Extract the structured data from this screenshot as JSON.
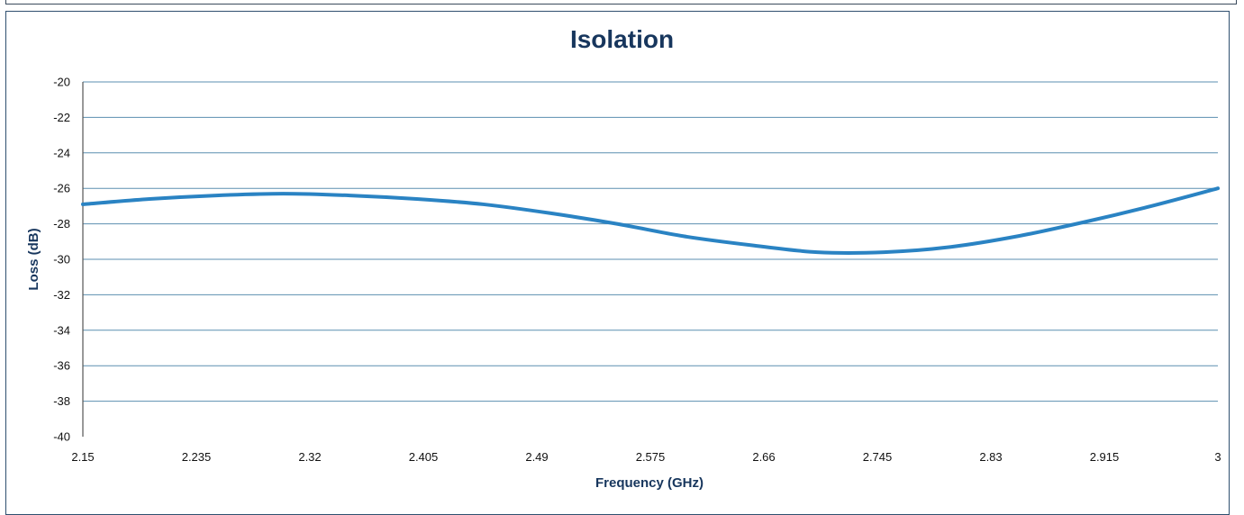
{
  "chart_data": {
    "type": "line",
    "title": "Isolation",
    "xlabel": "Frequency (GHz)",
    "ylabel": "Loss (dB)",
    "xlim": [
      2.15,
      3
    ],
    "ylim": [
      -40,
      -20
    ],
    "x_ticks": [
      "2.15",
      "2.235",
      "2.32",
      "2.405",
      "2.49",
      "2.575",
      "2.66",
      "2.745",
      "2.83",
      "2.915",
      "3"
    ],
    "y_ticks": [
      "-20",
      "-22",
      "-24",
      "-26",
      "-28",
      "-30",
      "-32",
      "-34",
      "-36",
      "-38",
      "-40"
    ],
    "grid": true,
    "legend": "none",
    "series": [
      {
        "color": "#2a83c3",
        "x": [
          2.15,
          2.2,
          2.25,
          2.3,
          2.35,
          2.4,
          2.45,
          2.5,
          2.55,
          2.6,
          2.65,
          2.7,
          2.75,
          2.8,
          2.85,
          2.9,
          2.95,
          3.0
        ],
        "values": [
          -26.9,
          -26.6,
          -26.4,
          -26.3,
          -26.4,
          -26.6,
          -26.9,
          -27.4,
          -28.0,
          -28.7,
          -29.2,
          -29.6,
          -29.6,
          -29.3,
          -28.7,
          -27.9,
          -27.0,
          -26.0
        ]
      }
    ]
  }
}
